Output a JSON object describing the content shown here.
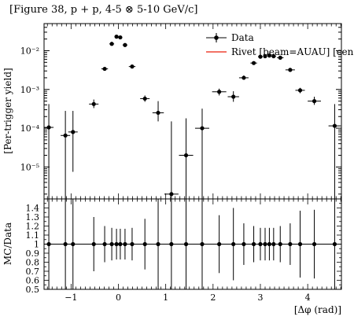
{
  "chart_data": [
    {
      "type": "scatter",
      "title": "[Figure 38, p + p, 4-5 ⊗ 5-10 GeV/c]",
      "ylabel": "[Per-trigger yield]",
      "yscale": "log",
      "xlim": [
        -1.5708,
        4.7124
      ],
      "ylim": [
        1.5e-06,
        0.05
      ],
      "yticks": [
        {
          "v": 0.0001,
          "label": "10⁻⁴"
        },
        {
          "v": 0.001,
          "label": "10⁻³"
        },
        {
          "v": 0.01,
          "label": "10⁻²"
        },
        {
          "v": 1e-05,
          "label": "10⁻⁵"
        }
      ],
      "legend": {
        "placement": "top-right",
        "entries": [
          "Data",
          "Rivet [beam=AUAU] [cen"
        ]
      },
      "series": [
        {
          "name": "Data",
          "color": "#000000",
          "points": [
            {
              "x": -1.47,
              "y": 0.000105,
              "xerr": 0.1,
              "ylo": 1.5e-06,
              "yhi": 0.00042
            },
            {
              "x": -1.12,
              "y": 6.5e-05,
              "xerr": 0.1,
              "ylo": 1.5e-06,
              "yhi": 0.00028
            },
            {
              "x": -0.96,
              "y": 8e-05,
              "xerr": 0.1,
              "ylo": 7.5e-06,
              "yhi": 0.00028
            },
            {
              "x": -0.52,
              "y": 0.00042,
              "xerr": 0.1,
              "ylo": 0.00033,
              "yhi": 0.00055
            },
            {
              "x": -0.29,
              "y": 0.0034,
              "xerr": 0.07,
              "ylo": 0.0031,
              "yhi": 0.0037
            },
            {
              "x": -0.14,
              "y": 0.015,
              "xerr": 0.05,
              "ylo": 0.0145,
              "yhi": 0.0155
            },
            {
              "x": -0.04,
              "y": 0.023,
              "xerr": 0.04,
              "ylo": 0.0225,
              "yhi": 0.0235
            },
            {
              "x": 0.04,
              "y": 0.022,
              "xerr": 0.04,
              "ylo": 0.0215,
              "yhi": 0.0225
            },
            {
              "x": 0.14,
              "y": 0.014,
              "xerr": 0.05,
              "ylo": 0.0135,
              "yhi": 0.0145
            },
            {
              "x": 0.29,
              "y": 0.0039,
              "xerr": 0.07,
              "ylo": 0.0036,
              "yhi": 0.0042
            },
            {
              "x": 0.56,
              "y": 0.00058,
              "xerr": 0.1,
              "ylo": 0.00048,
              "yhi": 0.0007
            },
            {
              "x": 0.84,
              "y": 0.00025,
              "xerr": 0.12,
              "ylo": 0.00015,
              "yhi": 0.0005
            },
            {
              "x": 1.12,
              "y": 2e-06,
              "xerr": 0.15,
              "ylo": 1.5e-06,
              "yhi": 0.00015
            },
            {
              "x": 1.43,
              "y": 2e-05,
              "xerr": 0.15,
              "ylo": 1.5e-06,
              "yhi": 0.00018
            },
            {
              "x": 1.77,
              "y": 0.0001,
              "xerr": 0.15,
              "ylo": 1.5e-06,
              "yhi": 0.00032
            },
            {
              "x": 2.13,
              "y": 0.00087,
              "xerr": 0.15,
              "ylo": 0.0007,
              "yhi": 0.00105
            },
            {
              "x": 2.43,
              "y": 0.00065,
              "xerr": 0.12,
              "ylo": 0.00048,
              "yhi": 0.0009
            },
            {
              "x": 2.65,
              "y": 0.002,
              "xerr": 0.1,
              "ylo": 0.0018,
              "yhi": 0.0023
            },
            {
              "x": 2.86,
              "y": 0.0048,
              "xerr": 0.07,
              "ylo": 0.0044,
              "yhi": 0.0052
            },
            {
              "x": 3.0,
              "y": 0.007,
              "xerr": 0.05,
              "ylo": 0.0066,
              "yhi": 0.0074
            },
            {
              "x": 3.1,
              "y": 0.0072,
              "xerr": 0.04,
              "ylo": 0.0068,
              "yhi": 0.0076
            },
            {
              "x": 3.19,
              "y": 0.0075,
              "xerr": 0.04,
              "ylo": 0.0071,
              "yhi": 0.0079
            },
            {
              "x": 3.28,
              "y": 0.0072,
              "xerr": 0.05,
              "ylo": 0.0068,
              "yhi": 0.0076
            },
            {
              "x": 3.42,
              "y": 0.0066,
              "xerr": 0.07,
              "ylo": 0.0062,
              "yhi": 0.007
            },
            {
              "x": 3.63,
              "y": 0.0032,
              "xerr": 0.1,
              "ylo": 0.0029,
              "yhi": 0.0035
            },
            {
              "x": 3.84,
              "y": 0.00095,
              "xerr": 0.1,
              "ylo": 0.0008,
              "yhi": 0.0011
            },
            {
              "x": 4.14,
              "y": 0.0005,
              "xerr": 0.14,
              "ylo": 0.0004,
              "yhi": 0.00065
            },
            {
              "x": 4.57,
              "y": 0.000115,
              "xerr": 0.13,
              "ylo": 1.5e-06,
              "yhi": 0.00042
            }
          ]
        }
      ]
    },
    {
      "type": "scatter",
      "xlabel": "[Δφ (rad)]",
      "ylabel": "MC/Data",
      "xlim": [
        -1.5708,
        4.7124
      ],
      "ylim": [
        0.5,
        1.5
      ],
      "xticks": [
        -1,
        0,
        1,
        2,
        3,
        4
      ],
      "yticks": [
        0.5,
        0.6,
        0.7,
        0.8,
        0.9,
        1,
        1.1,
        1.2,
        1.3,
        1.4
      ],
      "series": [
        {
          "name": "Data",
          "color": "#000000",
          "points": [
            {
              "x": -1.47,
              "y": 1,
              "xerr": 0.1,
              "ylo": 0.5,
              "yhi": 1.5
            },
            {
              "x": -1.12,
              "y": 1,
              "xerr": 0.1,
              "ylo": 0.5,
              "yhi": 1.5
            },
            {
              "x": -0.96,
              "y": 1,
              "xerr": 0.1,
              "ylo": 0.5,
              "yhi": 1.5
            },
            {
              "x": -0.52,
              "y": 1,
              "xerr": 0.1,
              "ylo": 0.7,
              "yhi": 1.3
            },
            {
              "x": -0.29,
              "y": 1,
              "xerr": 0.07,
              "ylo": 0.8,
              "yhi": 1.2
            },
            {
              "x": -0.14,
              "y": 1,
              "xerr": 0.05,
              "ylo": 0.82,
              "yhi": 1.18
            },
            {
              "x": -0.04,
              "y": 1,
              "xerr": 0.04,
              "ylo": 0.83,
              "yhi": 1.17
            },
            {
              "x": 0.04,
              "y": 1,
              "xerr": 0.04,
              "ylo": 0.83,
              "yhi": 1.17
            },
            {
              "x": 0.14,
              "y": 1,
              "xerr": 0.05,
              "ylo": 0.83,
              "yhi": 1.17
            },
            {
              "x": 0.29,
              "y": 1,
              "xerr": 0.07,
              "ylo": 0.82,
              "yhi": 1.18
            },
            {
              "x": 0.56,
              "y": 1,
              "xerr": 0.1,
              "ylo": 0.72,
              "yhi": 1.28
            },
            {
              "x": 0.84,
              "y": 1,
              "xerr": 0.12,
              "ylo": 0.5,
              "yhi": 1.5
            },
            {
              "x": 1.12,
              "y": 1,
              "xerr": 0.15,
              "ylo": 0.5,
              "yhi": 1.5
            },
            {
              "x": 1.43,
              "y": 1,
              "xerr": 0.15,
              "ylo": 0.5,
              "yhi": 1.5
            },
            {
              "x": 1.77,
              "y": 1,
              "xerr": 0.15,
              "ylo": 0.5,
              "yhi": 1.5
            },
            {
              "x": 2.13,
              "y": 1,
              "xerr": 0.15,
              "ylo": 0.68,
              "yhi": 1.32
            },
            {
              "x": 2.43,
              "y": 1,
              "xerr": 0.12,
              "ylo": 0.6,
              "yhi": 1.4
            },
            {
              "x": 2.65,
              "y": 1,
              "xerr": 0.1,
              "ylo": 0.77,
              "yhi": 1.23
            },
            {
              "x": 2.86,
              "y": 1,
              "xerr": 0.07,
              "ylo": 0.8,
              "yhi": 1.2
            },
            {
              "x": 3.0,
              "y": 1,
              "xerr": 0.05,
              "ylo": 0.82,
              "yhi": 1.18
            },
            {
              "x": 3.1,
              "y": 1,
              "xerr": 0.04,
              "ylo": 0.82,
              "yhi": 1.18
            },
            {
              "x": 3.19,
              "y": 1,
              "xerr": 0.04,
              "ylo": 0.82,
              "yhi": 1.18
            },
            {
              "x": 3.28,
              "y": 1,
              "xerr": 0.05,
              "ylo": 0.82,
              "yhi": 1.18
            },
            {
              "x": 3.42,
              "y": 1,
              "xerr": 0.07,
              "ylo": 0.8,
              "yhi": 1.2
            },
            {
              "x": 3.63,
              "y": 1,
              "xerr": 0.1,
              "ylo": 0.77,
              "yhi": 1.23
            },
            {
              "x": 3.84,
              "y": 1,
              "xerr": 0.1,
              "ylo": 0.63,
              "yhi": 1.37
            },
            {
              "x": 4.14,
              "y": 1,
              "xerr": 0.14,
              "ylo": 0.62,
              "yhi": 1.38
            },
            {
              "x": 4.57,
              "y": 1,
              "xerr": 0.13,
              "ylo": 0.5,
              "yhi": 1.5
            }
          ]
        },
        {
          "name": "Rivet [beam=AUAU] [cen",
          "color": "#ee4433",
          "points": []
        }
      ]
    }
  ]
}
